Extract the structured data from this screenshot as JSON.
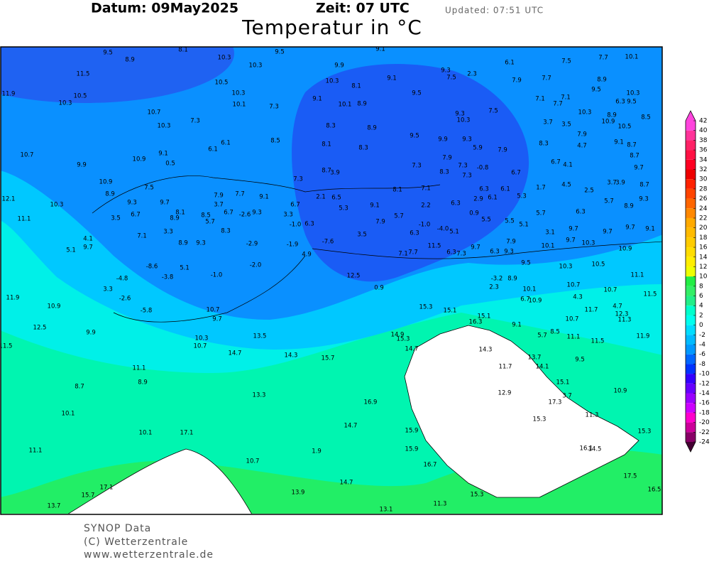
{
  "header": {
    "date": "Datum: 09May2025",
    "time": "Zeit: 07 UTC",
    "updated": "Updated: 07:51 UTC",
    "title": "Temperatur in °C"
  },
  "footer": {
    "line1": "SYNOP Data",
    "line2": "(C) Wetterzentrale",
    "line3": "www.wetterzentrale.de"
  },
  "colorbar": {
    "ticks": [
      42,
      40,
      38,
      36,
      34,
      32,
      30,
      28,
      26,
      24,
      22,
      20,
      18,
      16,
      14,
      12,
      10,
      8,
      6,
      4,
      2,
      0,
      -2,
      -4,
      -6,
      -8,
      -10,
      -12,
      -14,
      -16,
      -18,
      -20,
      -22,
      -24
    ],
    "colors": [
      "#ff44dd",
      "#ff3399",
      "#ff2266",
      "#ff1144",
      "#ff0022",
      "#ee0000",
      "#ff2200",
      "#ff4400",
      "#ff6600",
      "#ff8800",
      "#ffaa00",
      "#ffbb00",
      "#ffcc00",
      "#ffdd00",
      "#ffee00",
      "#eeff00",
      "#22ee44",
      "#33ee66",
      "#22ee88",
      "#00ffcc",
      "#00ffee",
      "#00ddff",
      "#00bbff",
      "#0099ff",
      "#0066ff",
      "#0033ff",
      "#3300ff",
      "#6600ff",
      "#9900ff",
      "#cc00ff",
      "#ff00cc",
      "#cc0099",
      "#880066"
    ],
    "top_color": "#ff44dd",
    "bottom_color": "#440033"
  },
  "stations": [
    "9.5",
    "8.1",
    "8.9",
    "10.3",
    "9.5",
    "9.1",
    "11.5",
    "10.3",
    "9.9",
    "11.9",
    "10.5",
    "10.3",
    "10.5",
    "10.3",
    "9.1",
    "8.1",
    "9.3",
    "7.5",
    "2.3",
    "6.1",
    "7.5",
    "7.7",
    "10.1",
    "7.9",
    "7.7",
    "8.9",
    "9.5",
    "10.3",
    "10.3",
    "9.1",
    "9.5",
    "10.1",
    "7.3",
    "10.1",
    "8.9",
    "7.1",
    "7.1",
    "7.7",
    "6.3",
    "9.5",
    "10.7",
    "9.3",
    "7.5",
    "10.3",
    "10.3",
    "8.9",
    "8.5",
    "10.3",
    "7.3",
    "8.3",
    "8.9",
    "3.7",
    "3.5",
    "10.9",
    "10.5",
    "9.5",
    "7.9",
    "6.1",
    "8.5",
    "8.1",
    "8.3",
    "9.9",
    "9.3",
    "8.3",
    "4.7",
    "9.1",
    "8.7",
    "10.7",
    "9.1",
    "6.1",
    "5.9",
    "7.9",
    "7.9",
    "8.7",
    "9.9",
    "10.9",
    "0.5",
    "7.3",
    "7.3",
    "-0.8",
    "6.7",
    "6.7",
    "4.1",
    "9.7",
    "8.7",
    "3.9",
    "8.3",
    "7.3",
    "10.9",
    "7.3",
    "8.7",
    "3.7",
    "3.9",
    "8.1",
    "7.1",
    "6.3",
    "6.1",
    "1.7",
    "4.5",
    "2.5",
    "8.9",
    "12.1",
    "2.1",
    "6.5",
    "2.9",
    "6.1",
    "5.3",
    "5.7",
    "10.3",
    "9.3",
    "3.7",
    "6.7",
    "5.3",
    "9.1",
    "2.2",
    "6.3",
    "8.9",
    "9.3",
    "11.1",
    "3.5",
    "6.7",
    "8.9",
    "5.7",
    "3.3",
    "5.7",
    "0.9",
    "5.7",
    "6.3",
    "9.1",
    "6.3",
    "7.9",
    "5.5",
    "5.5",
    "5.1",
    "-1.0",
    "-4.0",
    "5.1",
    "3.1",
    "9.7",
    "9.7",
    "9.7",
    "4.1",
    "9.7",
    "8.3",
    "-7.6",
    "3.5",
    "6.3",
    "7.9",
    "10.1",
    "9.7",
    "10.3",
    "10.9",
    "5.1",
    "4.9",
    "11.5",
    "9.7",
    "6.3",
    "9.3",
    "7.1",
    "7.7",
    "6.3",
    "7.3",
    "12.5",
    "9.5",
    "10.3",
    "10.5",
    "11.1",
    "-3.2",
    "8.9",
    "2.3",
    "10.1",
    "10.7",
    "0.9",
    "11.9",
    "4.3",
    "11.5",
    "10.7",
    "6.7",
    "10.9",
    "10.9",
    "15.3",
    "15.1",
    "11.7",
    "4.7",
    "12.3",
    "11.3",
    "15.1",
    "10.7",
    "16.3",
    "12.5",
    "9.1",
    "9.9",
    "13.5",
    "14.9",
    "15.3",
    "10.3",
    "8.5",
    "5.7",
    "11.1",
    "11.9",
    "10.7",
    "11.5",
    "11.5",
    "14.7",
    "14.3",
    "14.7",
    "14.3",
    "15.7",
    "13.7",
    "9.5",
    "11.1",
    "14.1",
    "11.7",
    "8.9",
    "15.1",
    "8.7",
    "10.9",
    "12.9",
    "13.3",
    "17.3",
    "16.9",
    "3.7",
    "10.1",
    "11.3",
    "14.7",
    "15.3",
    "10.1",
    "17.1",
    "15.9",
    "15.3",
    "11.1",
    "15.9",
    "1.9",
    "10.7",
    "16.1",
    "14.5",
    "16.7",
    "17.1",
    "14.7",
    "17.5",
    "13.9",
    "15.7",
    "15.3",
    "11.3",
    "16.5",
    "13.7",
    "13.1",
    "7.5",
    "9.7",
    "8.1",
    "8.5",
    "6.7",
    "-2.6",
    "9.3",
    "9.1",
    "7.9",
    "7.7",
    "7.1",
    "3.3",
    "9.3",
    "8.9",
    "-3.8",
    "-4.8",
    "-8.6",
    "5.1",
    "-1.0",
    "-2.9",
    "-2.0",
    "-1.9",
    "-1.0",
    "3.3",
    "-2.6",
    "-5.8",
    "9.7",
    "10.7"
  ]
}
